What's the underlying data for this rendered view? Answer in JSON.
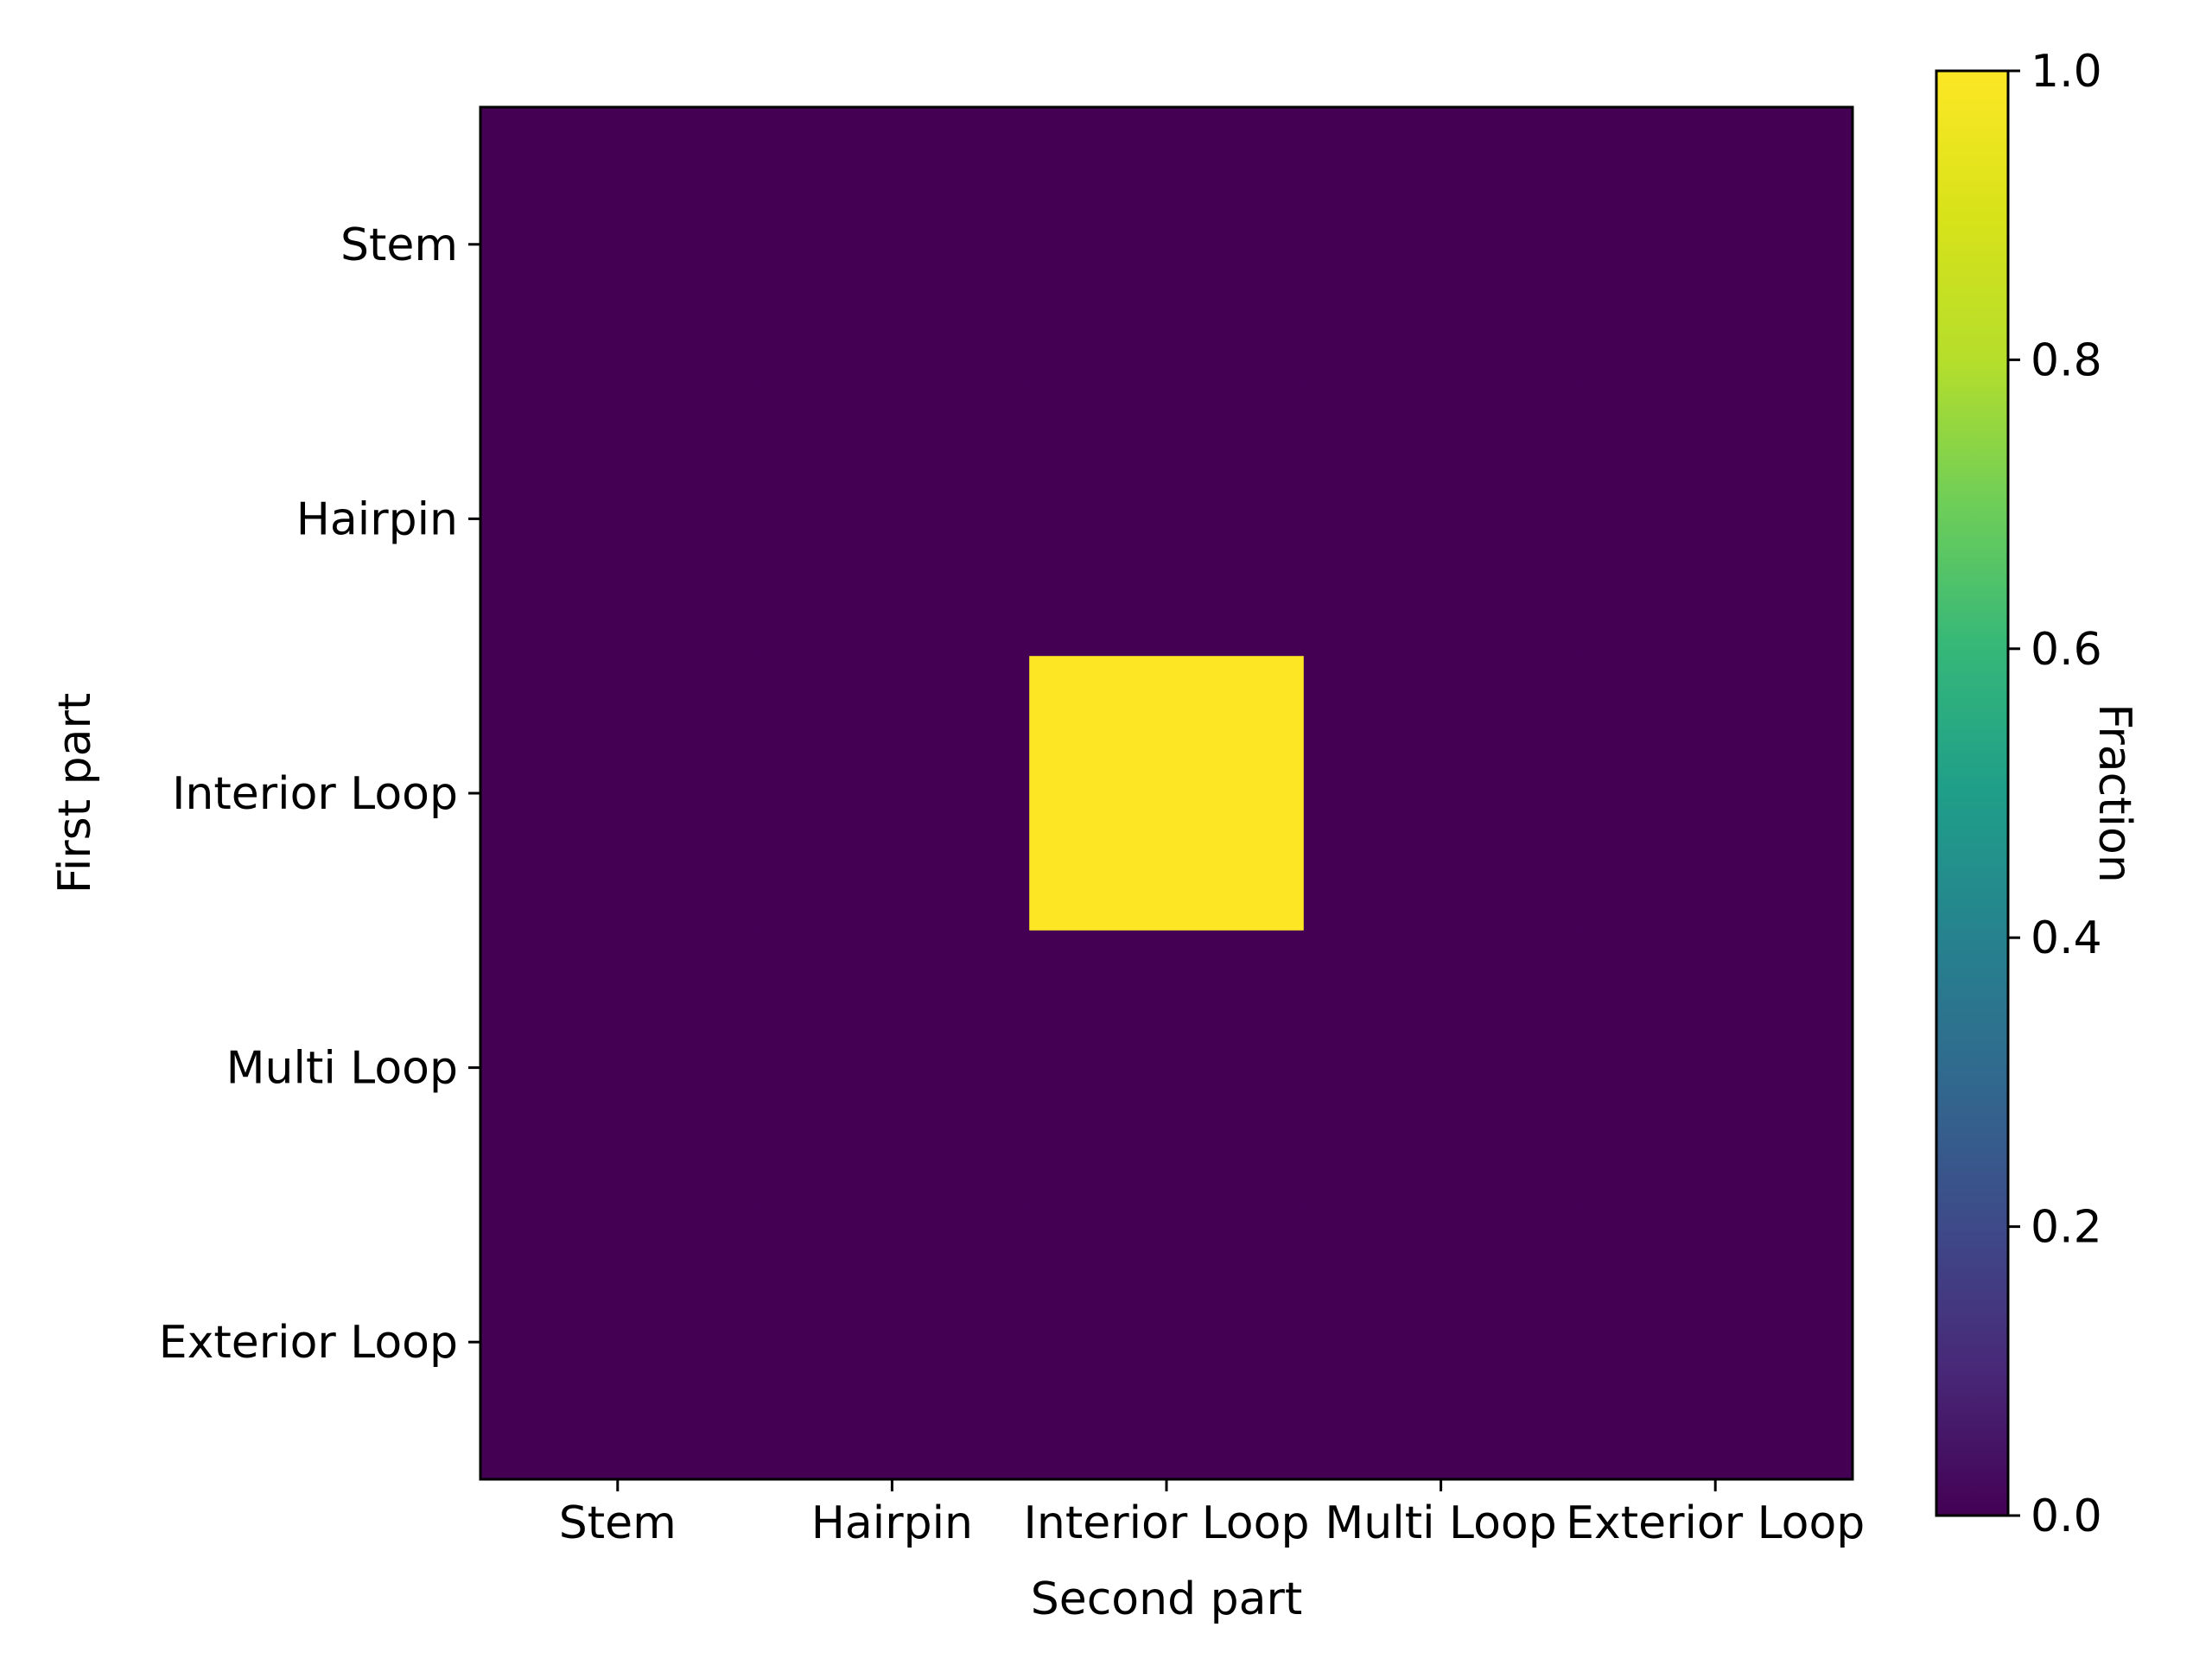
{
  "chart_data": {
    "type": "heatmap",
    "title": "",
    "xlabel": "Second part",
    "ylabel": "First part",
    "x_categories": [
      "Stem",
      "Hairpin",
      "Interior Loop",
      "Multi Loop",
      "Exterior Loop"
    ],
    "y_categories": [
      "Stem",
      "Hairpin",
      "Interior Loop",
      "Multi Loop",
      "Exterior Loop"
    ],
    "values": [
      [
        0,
        0,
        0,
        0,
        0
      ],
      [
        0,
        0,
        0,
        0,
        0
      ],
      [
        0,
        0,
        1,
        0,
        0
      ],
      [
        0,
        0,
        0,
        0,
        0
      ],
      [
        0,
        0,
        0,
        0,
        0
      ]
    ],
    "colorbar": {
      "label": "Fraction",
      "range": [
        0,
        1
      ],
      "ticks": [
        "0.0",
        "0.2",
        "0.4",
        "0.6",
        "0.8",
        "1.0"
      ],
      "colormap": "viridis"
    },
    "colors": {
      "low": "#440154",
      "high": "#fde725"
    },
    "grid": false
  }
}
